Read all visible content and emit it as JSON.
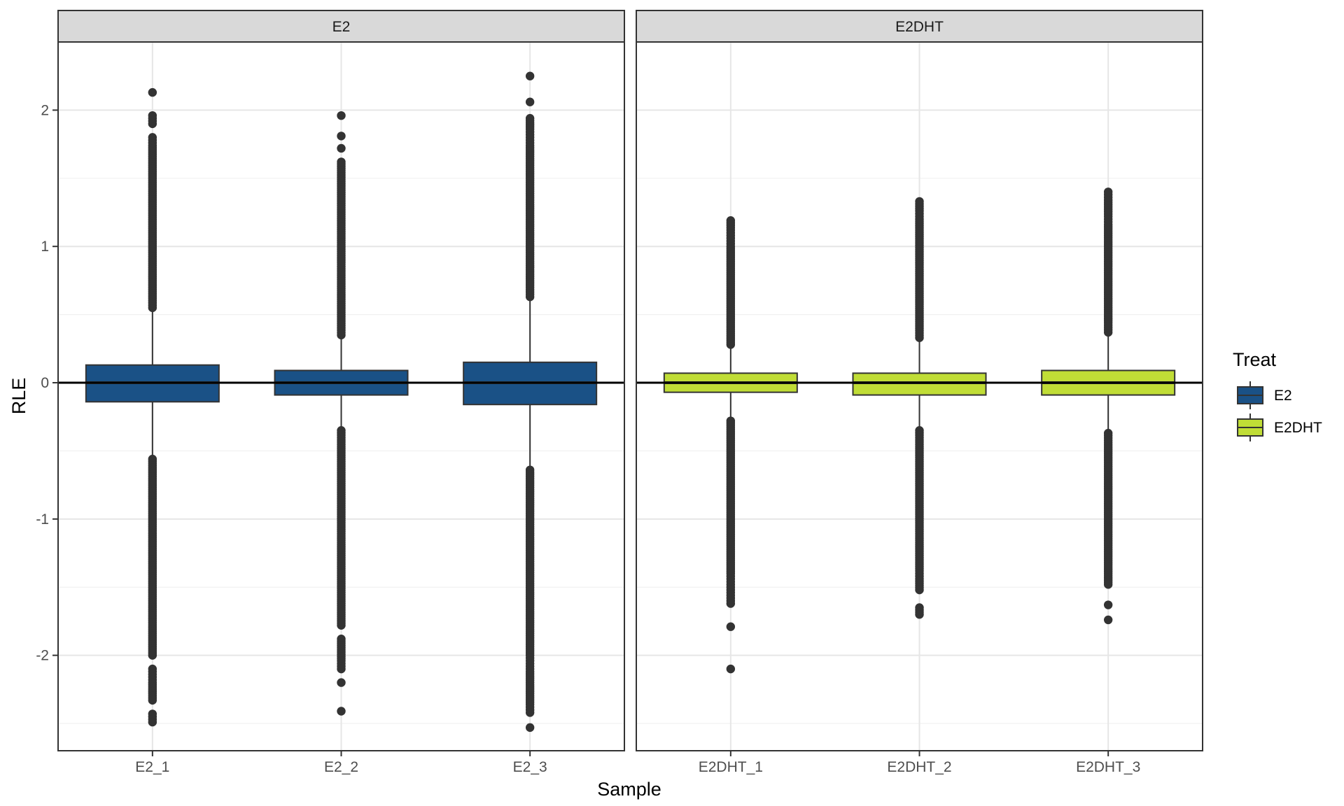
{
  "chart_data": {
    "type": "boxplot",
    "xlabel": "Sample",
    "ylabel": "RLE",
    "ylim": [
      -2.7,
      2.5
    ],
    "yticks": [
      -2,
      -1,
      0,
      1,
      2
    ],
    "ytick_labels": [
      "-2",
      "-1",
      "0",
      "1",
      "2"
    ],
    "reference_line": 0,
    "legend": {
      "title": "Treat",
      "position": "right",
      "entries": [
        {
          "label": "E2",
          "color": "#1a5186"
        },
        {
          "label": "E2DHT",
          "color": "#c0dd36"
        }
      ]
    },
    "panels": [
      {
        "label": "E2",
        "fill": "#1a5186",
        "samples": [
          {
            "name": "E2_1",
            "q1": -0.14,
            "median": 0.0,
            "q3": 0.13,
            "whisker_low": -0.54,
            "whisker_high": 0.53,
            "outliers_high": [
              0.55,
              0.62,
              0.7,
              0.78,
              0.86,
              0.94,
              1.02,
              1.1,
              1.18,
              1.26,
              1.34,
              1.42,
              1.5,
              1.58,
              1.66,
              1.74,
              1.8,
              1.9,
              1.96,
              2.13
            ],
            "outliers_low": [
              -0.56,
              -0.64,
              -0.72,
              -0.8,
              -0.88,
              -0.96,
              -1.04,
              -1.12,
              -1.2,
              -1.28,
              -1.36,
              -1.44,
              -1.52,
              -1.6,
              -1.68,
              -1.76,
              -1.84,
              -1.92,
              -2.0,
              -2.1,
              -2.16,
              -2.2,
              -2.28,
              -2.33,
              -2.43,
              -2.49
            ]
          },
          {
            "name": "E2_2",
            "q1": -0.09,
            "median": 0.0,
            "q3": 0.09,
            "whisker_low": -0.33,
            "whisker_high": 0.33,
            "outliers_high": [
              0.35,
              0.42,
              0.5,
              0.58,
              0.66,
              0.74,
              0.82,
              0.9,
              0.98,
              1.06,
              1.14,
              1.22,
              1.3,
              1.38,
              1.46,
              1.54,
              1.62,
              1.72,
              1.81,
              1.96
            ],
            "outliers_low": [
              -0.35,
              -0.42,
              -0.5,
              -0.58,
              -0.66,
              -0.74,
              -0.82,
              -0.9,
              -0.98,
              -1.06,
              -1.14,
              -1.22,
              -1.3,
              -1.38,
              -1.46,
              -1.54,
              -1.62,
              -1.7,
              -1.78,
              -1.88,
              -1.96,
              -2.04,
              -2.1,
              -2.2,
              -2.41
            ]
          },
          {
            "name": "E2_3",
            "q1": -0.16,
            "median": 0.0,
            "q3": 0.15,
            "whisker_low": -0.62,
            "whisker_high": 0.61,
            "outliers_high": [
              0.63,
              0.7,
              0.78,
              0.86,
              0.94,
              1.02,
              1.1,
              1.18,
              1.26,
              1.34,
              1.42,
              1.5,
              1.58,
              1.66,
              1.74,
              1.8,
              1.86,
              1.94,
              2.06,
              2.25
            ],
            "outliers_low": [
              -0.64,
              -0.72,
              -0.8,
              -0.88,
              -0.96,
              -1.04,
              -1.12,
              -1.2,
              -1.28,
              -1.36,
              -1.44,
              -1.52,
              -1.6,
              -1.68,
              -1.76,
              -1.84,
              -1.92,
              -2.0,
              -2.06,
              -2.12,
              -2.2,
              -2.28,
              -2.36,
              -2.42,
              -2.53
            ]
          }
        ]
      },
      {
        "label": "E2DHT",
        "fill": "#c0dd36",
        "samples": [
          {
            "name": "E2DHT_1",
            "q1": -0.07,
            "median": 0.0,
            "q3": 0.07,
            "whisker_low": -0.27,
            "whisker_high": 0.26,
            "outliers_high": [
              0.28,
              0.36,
              0.44,
              0.52,
              0.6,
              0.68,
              0.76,
              0.84,
              0.92,
              1.0,
              1.06,
              1.12,
              1.19
            ],
            "outliers_low": [
              -0.28,
              -0.36,
              -0.44,
              -0.52,
              -0.6,
              -0.68,
              -0.76,
              -0.84,
              -0.92,
              -1.0,
              -1.08,
              -1.16,
              -1.24,
              -1.32,
              -1.4,
              -1.46,
              -1.5,
              -1.56,
              -1.62,
              -1.79,
              -2.1
            ]
          },
          {
            "name": "E2DHT_2",
            "q1": -0.09,
            "median": 0.0,
            "q3": 0.07,
            "whisker_low": -0.33,
            "whisker_high": 0.31,
            "outliers_high": [
              0.33,
              0.4,
              0.48,
              0.56,
              0.64,
              0.72,
              0.8,
              0.88,
              0.96,
              1.04,
              1.12,
              1.2,
              1.26,
              1.33
            ],
            "outliers_low": [
              -0.35,
              -0.42,
              -0.5,
              -0.58,
              -0.66,
              -0.74,
              -0.82,
              -0.9,
              -0.98,
              -1.06,
              -1.14,
              -1.22,
              -1.3,
              -1.38,
              -1.44,
              -1.52,
              -1.65,
              -1.7
            ]
          },
          {
            "name": "E2DHT_3",
            "q1": -0.09,
            "median": 0.0,
            "q3": 0.09,
            "whisker_low": -0.35,
            "whisker_high": 0.35,
            "outliers_high": [
              0.37,
              0.44,
              0.52,
              0.6,
              0.68,
              0.76,
              0.84,
              0.92,
              1.0,
              1.08,
              1.16,
              1.22,
              1.29,
              1.34,
              1.4
            ],
            "outliers_low": [
              -0.37,
              -0.44,
              -0.52,
              -0.6,
              -0.68,
              -0.76,
              -0.84,
              -0.92,
              -1.0,
              -1.08,
              -1.16,
              -1.24,
              -1.32,
              -1.4,
              -1.48,
              -1.63,
              -1.74
            ]
          }
        ]
      }
    ]
  }
}
